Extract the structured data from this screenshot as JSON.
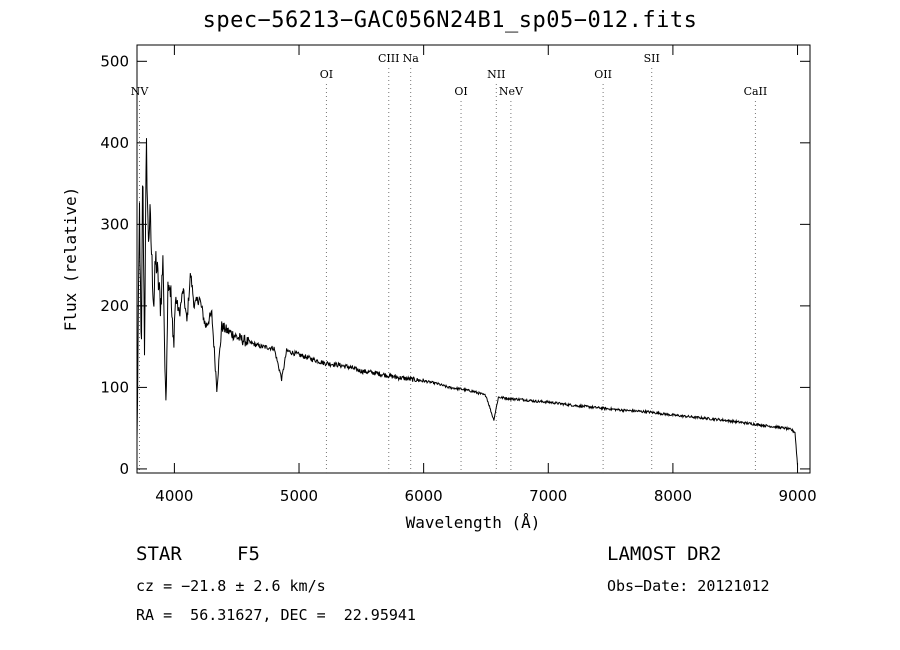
{
  "footer": {
    "object_class": "STAR",
    "subclass": "F5",
    "survey": "LAMOST DR2",
    "cz": "cz = −21.8 ± 2.6 km/s",
    "obs_date": "Obs−Date: 20121012",
    "coords": "RA =  56.31627, DEC =  22.95941"
  },
  "chart_data": {
    "type": "line",
    "title": "spec−56213−GAC056N24B1_sp05−012.fits",
    "xlabel": "Wavelength (Å)",
    "ylabel": "Flux (relative)",
    "xlim": [
      3700,
      9100
    ],
    "ylim": [
      -5,
      520
    ],
    "xticks": [
      4000,
      5000,
      6000,
      7000,
      8000,
      9000
    ],
    "yticks": [
      0,
      100,
      200,
      300,
      400,
      500
    ],
    "grid": false,
    "line_color": "#000000",
    "series": [
      {
        "x": [
          3700,
          3720,
          3735,
          3745,
          3760,
          3775,
          3790,
          3805,
          3820,
          3835,
          3850,
          3870,
          3890,
          3910,
          3930,
          3950,
          3970,
          3990,
          4010,
          4040,
          4070,
          4100,
          4130,
          4160,
          4200,
          4250,
          4300,
          4340,
          4380,
          4420,
          4470,
          4520,
          4600,
          4700,
          4800,
          4861,
          4900,
          5000,
          5100,
          5200,
          5300,
          5400,
          5500,
          5600,
          5700,
          5800,
          5900,
          6000,
          6100,
          6200,
          6300,
          6400,
          6500,
          6563,
          6600,
          6700,
          6800,
          6900,
          7000,
          7200,
          7400,
          7600,
          7800,
          8000,
          8200,
          8400,
          8500,
          8600,
          8700,
          8800,
          8900,
          8950,
          8980,
          9000
        ],
        "y": [
          30,
          320,
          120,
          380,
          150,
          400,
          280,
          310,
          250,
          200,
          260,
          230,
          200,
          260,
          70,
          240,
          220,
          150,
          210,
          190,
          220,
          180,
          240,
          200,
          210,
          175,
          190,
          100,
          175,
          170,
          165,
          160,
          155,
          150,
          148,
          110,
          145,
          140,
          135,
          130,
          128,
          125,
          120,
          118,
          115,
          112,
          110,
          108,
          105,
          100,
          98,
          95,
          90,
          60,
          88,
          86,
          85,
          83,
          82,
          78,
          75,
          72,
          70,
          66,
          63,
          60,
          58,
          56,
          54,
          52,
          50,
          48,
          45,
          5
        ]
      }
    ],
    "lines": [
      {
        "label": "NV",
        "x": 3720,
        "row": 3
      },
      {
        "label": "OI",
        "x": 5220,
        "row": 2
      },
      {
        "label": "CIII",
        "x": 5720,
        "row": 1
      },
      {
        "label": "Na",
        "x": 5896,
        "row": 1
      },
      {
        "label": "OI",
        "x": 6300,
        "row": 3
      },
      {
        "label": "NII",
        "x": 6583,
        "row": 2
      },
      {
        "label": "NeV",
        "x": 6700,
        "row": 3
      },
      {
        "label": "OII",
        "x": 7440,
        "row": 2
      },
      {
        "label": "SII",
        "x": 7830,
        "row": 1
      },
      {
        "label": "CaII",
        "x": 8662,
        "row": 3
      }
    ]
  }
}
